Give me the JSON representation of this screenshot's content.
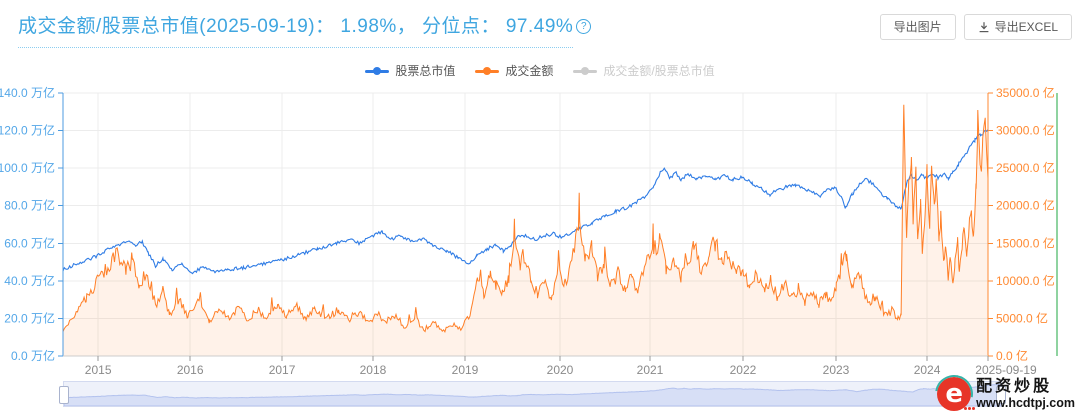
{
  "header": {
    "title": "成交金额/股票总市值(2025-09-19)： 1.98%， 分位点： 97.49%",
    "help_glyph": "?",
    "export_image": "导出图片",
    "export_excel": "导出EXCEL"
  },
  "legend": {
    "items": [
      {
        "label": "股票总市值",
        "color": "#2f7ce5",
        "active": true
      },
      {
        "label": "成交金额",
        "color": "#ff7f27",
        "active": true
      },
      {
        "label": "成交金额/股票总市值",
        "color": "#cccccc",
        "active": false
      }
    ]
  },
  "watermark": {
    "brand": "配资炒股",
    "site": "www.hcdtpj.com"
  },
  "colors": {
    "title_blue": "#3fa6e0",
    "series_blue": "#2f7ce5",
    "series_orange": "#ff7f27",
    "orange_area": "rgba(255,127,39,0.10)",
    "left_axis": "#4c9be0",
    "left_label": "#54a7e8",
    "right_axis": "#ff8a33",
    "right_label": "#ff8a33",
    "ratio_axis_green": "#8fd3a0",
    "grid": "#ececec",
    "x_axis": "#cccccc",
    "x_label": "#8a8a8a"
  },
  "chart_data": {
    "type": "line",
    "title": "成交金额/股票总市值",
    "legend_position": "top-center",
    "grid": true,
    "y_axis_left": {
      "name": "股票总市值",
      "unit": "万亿",
      "min": 0,
      "max": 140,
      "step": 20,
      "labels": [
        "140.0 万亿",
        "120.0 万亿",
        "100.0 万亿",
        "80.0 万亿",
        "60.0 万亿",
        "40.0 万亿",
        "20.0 万亿",
        "0.0 万亿"
      ]
    },
    "y_axis_right": {
      "name": "成交金额",
      "unit": "亿",
      "min": 0,
      "max": 35000,
      "step": 5000,
      "labels": [
        "35000.0 亿",
        "30000.0 亿",
        "25000.0 亿",
        "20000.0 亿",
        "15000.0 亿",
        "10000.0 亿",
        "5000.0 亿",
        "0.0 亿"
      ]
    },
    "x_axis": {
      "ticks": [
        {
          "label": "2015",
          "f": 0.038
        },
        {
          "label": "2016",
          "f": 0.1375
        },
        {
          "label": "2017",
          "f": 0.2368
        },
        {
          "label": "2018",
          "f": 0.3351
        },
        {
          "label": "2019",
          "f": 0.4346
        },
        {
          "label": "2020",
          "f": 0.5373
        },
        {
          "label": "2021",
          "f": 0.6346
        },
        {
          "label": "2022",
          "f": 0.7351
        },
        {
          "label": "2023",
          "f": 0.8357
        },
        {
          "label": "2024",
          "f": 0.9341
        },
        {
          "label": "2025-09-19",
          "f": 1.0,
          "end": true
        }
      ]
    },
    "series": [
      {
        "name": "股票总市值",
        "axis": "left",
        "color": "#2f7ce5",
        "visible": true,
        "keypoints": [
          [
            0,
            46
          ],
          [
            0.01,
            48
          ],
          [
            0.02,
            50
          ],
          [
            0.03,
            52
          ],
          [
            0.04,
            54
          ],
          [
            0.05,
            57
          ],
          [
            0.06,
            59
          ],
          [
            0.07,
            61
          ],
          [
            0.078,
            59
          ],
          [
            0.085,
            61
          ],
          [
            0.092,
            55
          ],
          [
            0.1,
            48
          ],
          [
            0.108,
            52
          ],
          [
            0.118,
            46
          ],
          [
            0.128,
            49
          ],
          [
            0.14,
            44
          ],
          [
            0.15,
            47
          ],
          [
            0.163,
            45
          ],
          [
            0.178,
            46
          ],
          [
            0.195,
            47
          ],
          [
            0.215,
            49
          ],
          [
            0.235,
            51
          ],
          [
            0.255,
            54
          ],
          [
            0.275,
            57
          ],
          [
            0.295,
            60
          ],
          [
            0.31,
            62
          ],
          [
            0.32,
            60
          ],
          [
            0.33,
            63
          ],
          [
            0.345,
            66
          ],
          [
            0.355,
            62
          ],
          [
            0.365,
            64
          ],
          [
            0.378,
            61
          ],
          [
            0.39,
            62
          ],
          [
            0.4,
            59
          ],
          [
            0.415,
            56
          ],
          [
            0.428,
            52
          ],
          [
            0.437,
            49
          ],
          [
            0.447,
            53
          ],
          [
            0.458,
            57
          ],
          [
            0.468,
            59
          ],
          [
            0.476,
            56
          ],
          [
            0.484,
            58
          ],
          [
            0.49,
            63
          ],
          [
            0.5,
            64
          ],
          [
            0.51,
            62
          ],
          [
            0.52,
            64
          ],
          [
            0.53,
            65
          ],
          [
            0.54,
            63
          ],
          [
            0.55,
            66
          ],
          [
            0.56,
            68
          ],
          [
            0.572,
            71
          ],
          [
            0.585,
            74
          ],
          [
            0.598,
            77
          ],
          [
            0.61,
            79
          ],
          [
            0.62,
            82
          ],
          [
            0.63,
            85
          ],
          [
            0.638,
            90
          ],
          [
            0.645,
            97
          ],
          [
            0.65,
            100
          ],
          [
            0.656,
            94
          ],
          [
            0.662,
            98
          ],
          [
            0.668,
            94
          ],
          [
            0.676,
            97
          ],
          [
            0.685,
            94
          ],
          [
            0.695,
            96
          ],
          [
            0.705,
            94
          ],
          [
            0.715,
            96
          ],
          [
            0.724,
            94
          ],
          [
            0.734,
            95
          ],
          [
            0.745,
            92
          ],
          [
            0.755,
            89
          ],
          [
            0.764,
            86
          ],
          [
            0.772,
            88
          ],
          [
            0.782,
            90
          ],
          [
            0.792,
            91
          ],
          [
            0.8,
            89
          ],
          [
            0.81,
            87
          ],
          [
            0.818,
            85
          ],
          [
            0.826,
            88
          ],
          [
            0.834,
            90
          ],
          [
            0.84,
            86
          ],
          [
            0.846,
            79
          ],
          [
            0.853,
            86
          ],
          [
            0.861,
            91
          ],
          [
            0.868,
            94
          ],
          [
            0.875,
            92
          ],
          [
            0.883,
            87
          ],
          [
            0.891,
            84
          ],
          [
            0.9,
            80
          ],
          [
            0.906,
            78
          ],
          [
            0.912,
            92
          ],
          [
            0.917,
            96
          ],
          [
            0.923,
            94
          ],
          [
            0.928,
            96
          ],
          [
            0.934,
            95
          ],
          [
            0.94,
            97
          ],
          [
            0.946,
            95
          ],
          [
            0.952,
            97
          ],
          [
            0.957,
            94
          ],
          [
            0.962,
            98
          ],
          [
            0.968,
            102
          ],
          [
            0.974,
            106
          ],
          [
            0.98,
            111
          ],
          [
            0.986,
            115
          ],
          [
            0.992,
            118
          ],
          [
            1,
            120
          ]
        ]
      },
      {
        "name": "成交金额",
        "axis": "right",
        "color": "#ff7f27",
        "area": true,
        "visible": true,
        "keypoints": [
          [
            0,
            3200
          ],
          [
            0.012,
            5200
          ],
          [
            0.025,
            7800
          ],
          [
            0.04,
            10500
          ],
          [
            0.05,
            12000
          ],
          [
            0.06,
            13800
          ],
          [
            0.068,
            11000
          ],
          [
            0.075,
            13000
          ],
          [
            0.082,
            9000
          ],
          [
            0.09,
            11200
          ],
          [
            0.1,
            6800
          ],
          [
            0.108,
            8800
          ],
          [
            0.115,
            5400
          ],
          [
            0.125,
            7600
          ],
          [
            0.135,
            5200
          ],
          [
            0.147,
            7200
          ],
          [
            0.158,
            4600
          ],
          [
            0.17,
            6400
          ],
          [
            0.18,
            5000
          ],
          [
            0.19,
            6600
          ],
          [
            0.2,
            4800
          ],
          [
            0.21,
            6200
          ],
          [
            0.22,
            5200
          ],
          [
            0.232,
            7000
          ],
          [
            0.242,
            5400
          ],
          [
            0.252,
            6800
          ],
          [
            0.262,
            4800
          ],
          [
            0.272,
            6400
          ],
          [
            0.285,
            5000
          ],
          [
            0.298,
            6200
          ],
          [
            0.31,
            4600
          ],
          [
            0.32,
            5800
          ],
          [
            0.33,
            4400
          ],
          [
            0.34,
            5600
          ],
          [
            0.35,
            4200
          ],
          [
            0.36,
            5400
          ],
          [
            0.37,
            3800
          ],
          [
            0.38,
            5200
          ],
          [
            0.39,
            3400
          ],
          [
            0.4,
            4600
          ],
          [
            0.41,
            3200
          ],
          [
            0.42,
            4200
          ],
          [
            0.43,
            3600
          ],
          [
            0.44,
            5400
          ],
          [
            0.448,
            9800
          ],
          [
            0.455,
            8200
          ],
          [
            0.462,
            11600
          ],
          [
            0.468,
            9400
          ],
          [
            0.475,
            8200
          ],
          [
            0.482,
            10400
          ],
          [
            0.488,
            16800
          ],
          [
            0.494,
            12000
          ],
          [
            0.5,
            13400
          ],
          [
            0.506,
            9600
          ],
          [
            0.513,
            8400
          ],
          [
            0.52,
            9800
          ],
          [
            0.528,
            7600
          ],
          [
            0.535,
            11600
          ],
          [
            0.542,
            9200
          ],
          [
            0.55,
            13200
          ],
          [
            0.558,
            17000
          ],
          [
            0.565,
            12800
          ],
          [
            0.572,
            14400
          ],
          [
            0.578,
            10400
          ],
          [
            0.585,
            12400
          ],
          [
            0.592,
            9200
          ],
          [
            0.6,
            11000
          ],
          [
            0.608,
            8800
          ],
          [
            0.615,
            10600
          ],
          [
            0.622,
            8600
          ],
          [
            0.63,
            12400
          ],
          [
            0.638,
            14200
          ],
          [
            0.645,
            15400
          ],
          [
            0.652,
            11400
          ],
          [
            0.66,
            13200
          ],
          [
            0.668,
            10400
          ],
          [
            0.675,
            12800
          ],
          [
            0.682,
            14800
          ],
          [
            0.69,
            11200
          ],
          [
            0.698,
            13400
          ],
          [
            0.705,
            15200
          ],
          [
            0.712,
            12200
          ],
          [
            0.72,
            13600
          ],
          [
            0.728,
            10800
          ],
          [
            0.735,
            12000
          ],
          [
            0.742,
            9400
          ],
          [
            0.75,
            10800
          ],
          [
            0.758,
            8600
          ],
          [
            0.765,
            10200
          ],
          [
            0.772,
            8000
          ],
          [
            0.78,
            9600
          ],
          [
            0.788,
            7600
          ],
          [
            0.795,
            9000
          ],
          [
            0.802,
            7200
          ],
          [
            0.81,
            8800
          ],
          [
            0.817,
            6900
          ],
          [
            0.824,
            8400
          ],
          [
            0.83,
            7300
          ],
          [
            0.836,
            9200
          ],
          [
            0.842,
            12200
          ],
          [
            0.847,
            13400
          ],
          [
            0.853,
            9600
          ],
          [
            0.86,
            11200
          ],
          [
            0.866,
            8400
          ],
          [
            0.872,
            7200
          ],
          [
            0.878,
            7900
          ],
          [
            0.884,
            6400
          ],
          [
            0.89,
            5400
          ],
          [
            0.896,
            6100
          ],
          [
            0.902,
            5000
          ],
          [
            0.906,
            5600
          ],
          [
            0.909,
            34800
          ],
          [
            0.912,
            15000
          ],
          [
            0.914,
            22000
          ],
          [
            0.917,
            26500
          ],
          [
            0.919,
            18000
          ],
          [
            0.922,
            24000
          ],
          [
            0.924,
            15500
          ],
          [
            0.927,
            21000
          ],
          [
            0.929,
            14200
          ],
          [
            0.932,
            19000
          ],
          [
            0.934,
            24500
          ],
          [
            0.937,
            17500
          ],
          [
            0.939,
            26000
          ],
          [
            0.942,
            20000
          ],
          [
            0.944,
            23500
          ],
          [
            0.947,
            15500
          ],
          [
            0.949,
            18500
          ],
          [
            0.952,
            12500
          ],
          [
            0.954,
            14800
          ],
          [
            0.957,
            10500
          ],
          [
            0.959,
            13200
          ],
          [
            0.962,
            9800
          ],
          [
            0.964,
            12200
          ],
          [
            0.967,
            15500
          ],
          [
            0.969,
            11500
          ],
          [
            0.972,
            14200
          ],
          [
            0.974,
            17800
          ],
          [
            0.977,
            13500
          ],
          [
            0.979,
            16500
          ],
          [
            0.982,
            19500
          ],
          [
            0.984,
            15500
          ],
          [
            0.987,
            22000
          ],
          [
            0.989,
            31800
          ],
          [
            0.992,
            24000
          ],
          [
            0.994,
            28000
          ],
          [
            0.997,
            31500
          ],
          [
            1,
            24000
          ]
        ]
      },
      {
        "name": "成交金额/股票总市值",
        "axis": "ratio-hidden",
        "color": "#8fd3a0",
        "visible": false,
        "keypoints": []
      }
    ]
  }
}
